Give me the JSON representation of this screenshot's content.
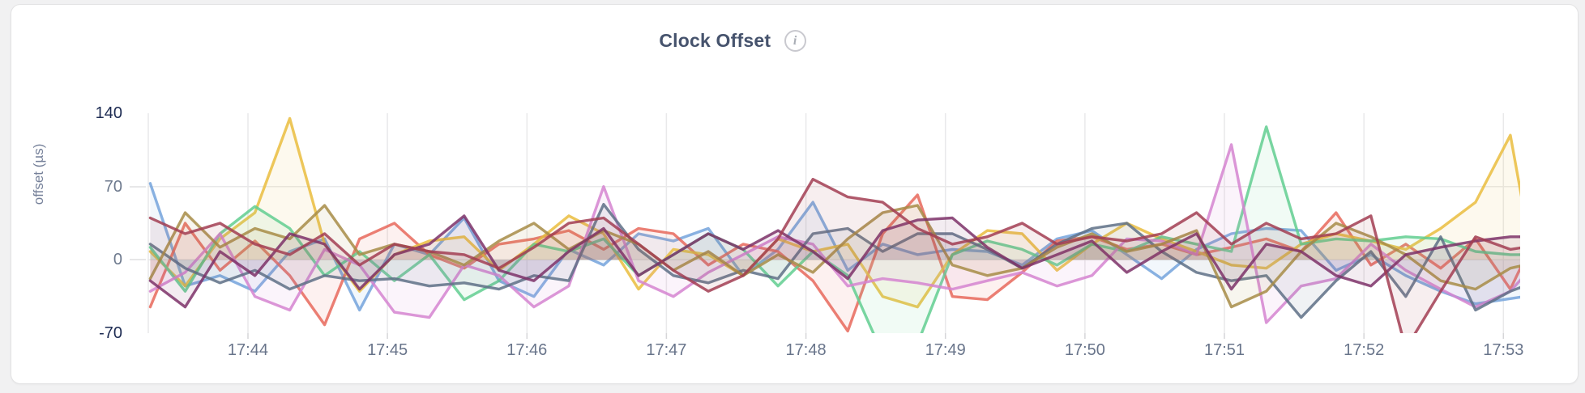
{
  "header": {
    "title": "Clock Offset",
    "info_icon_glyph": "i"
  },
  "chart_data": {
    "type": "line",
    "title": "Clock Offset",
    "xlabel": "",
    "ylabel": "offset (µs)",
    "ylim": [
      -70,
      140
    ],
    "grid": true,
    "legend": "none",
    "yticks": [
      {
        "label": "140",
        "value": 140,
        "emphasis": true
      },
      {
        "label": "70",
        "value": 70,
        "emphasis": false
      },
      {
        "label": "0",
        "value": 0,
        "emphasis": false
      },
      {
        "label": "-70",
        "value": -70,
        "emphasis": true
      }
    ],
    "grid_y_values": [
      70,
      0
    ],
    "xticks": [
      {
        "label": "17:44",
        "minute": 44
      },
      {
        "label": "17:45",
        "minute": 45
      },
      {
        "label": "17:46",
        "minute": 46
      },
      {
        "label": "17:47",
        "minute": 47
      },
      {
        "label": "17:48",
        "minute": 48
      },
      {
        "label": "17:49",
        "minute": 49
      },
      {
        "label": "17:50",
        "minute": 50
      },
      {
        "label": "17:51",
        "minute": 51
      },
      {
        "label": "17:52",
        "minute": 52
      },
      {
        "label": "17:53",
        "minute": 53
      }
    ],
    "x_domain_minutes": [
      43.28,
      53.12
    ],
    "x_minutes": [
      43.3,
      43.55,
      43.8,
      44.05,
      44.3,
      44.55,
      44.8,
      45.05,
      45.3,
      45.55,
      45.8,
      46.05,
      46.3,
      46.55,
      46.8,
      47.05,
      47.3,
      47.55,
      47.8,
      48.05,
      48.3,
      48.55,
      48.8,
      49.05,
      49.3,
      49.55,
      49.8,
      50.05,
      50.3,
      50.55,
      50.8,
      51.05,
      51.3,
      51.55,
      51.8,
      52.05,
      52.3,
      52.55,
      52.8,
      53.05,
      53.15
    ],
    "series": [
      {
        "name": "blue",
        "color": "#74A3DC",
        "values": [
          73,
          -25,
          -15,
          -30,
          8,
          20,
          -48,
          15,
          5,
          40,
          -20,
          -35,
          10,
          -5,
          25,
          18,
          30,
          -15,
          10,
          55,
          -10,
          15,
          5,
          10,
          8,
          -5,
          20,
          28,
          5,
          -18,
          10,
          25,
          30,
          28,
          -10,
          5,
          -15,
          -30,
          -42,
          -37,
          -35
        ]
      },
      {
        "name": "salmon",
        "color": "#E8685C",
        "values": [
          -45,
          35,
          -10,
          18,
          -15,
          -62,
          20,
          35,
          5,
          -8,
          15,
          20,
          28,
          10,
          30,
          25,
          -5,
          15,
          8,
          -20,
          -68,
          25,
          62,
          -35,
          -38,
          -12,
          18,
          22,
          10,
          15,
          5,
          12,
          20,
          8,
          45,
          -5,
          15,
          -8,
          20,
          -28,
          0
        ]
      },
      {
        "name": "yellow",
        "color": "#EABD3E",
        "values": [
          8,
          -25,
          20,
          45,
          135,
          15,
          -30,
          5,
          18,
          22,
          -10,
          15,
          42,
          25,
          -28,
          10,
          5,
          -15,
          20,
          8,
          15,
          -35,
          -45,
          5,
          28,
          25,
          -10,
          15,
          35,
          20,
          8,
          -5,
          -8,
          15,
          25,
          18,
          10,
          30,
          55,
          119,
          45
        ]
      },
      {
        "name": "green",
        "color": "#62CE90",
        "values": [
          12,
          -30,
          25,
          51,
          30,
          -15,
          8,
          -20,
          5,
          -38,
          -20,
          15,
          8,
          20,
          -15,
          5,
          25,
          10,
          -25,
          8,
          -15,
          -90,
          -80,
          5,
          18,
          10,
          -5,
          15,
          8,
          22,
          15,
          8,
          127,
          15,
          20,
          18,
          22,
          20,
          8,
          5,
          5
        ]
      },
      {
        "name": "orchid",
        "color": "#D584D0",
        "values": [
          -30,
          -12,
          25,
          -35,
          -48,
          10,
          -5,
          -50,
          -55,
          -5,
          -15,
          -45,
          -25,
          70,
          -20,
          -35,
          -12,
          5,
          22,
          15,
          -25,
          -18,
          -22,
          -28,
          -20,
          -12,
          -25,
          -15,
          20,
          18,
          5,
          110,
          -60,
          -25,
          -18,
          15,
          -10,
          -28,
          -45,
          -30,
          -15
        ]
      },
      {
        "name": "slate",
        "color": "#5E7086",
        "values": [
          15,
          -8,
          -22,
          -10,
          -28,
          -15,
          -20,
          -18,
          -25,
          -22,
          -28,
          -15,
          -20,
          53,
          10,
          -15,
          -22,
          -10,
          -18,
          25,
          30,
          8,
          25,
          25,
          10,
          -8,
          15,
          30,
          35,
          8,
          -12,
          -20,
          -15,
          -55,
          -20,
          8,
          -35,
          22,
          -48,
          -30,
          -25
        ]
      },
      {
        "name": "olive",
        "color": "#A78C46",
        "values": [
          -18,
          45,
          12,
          30,
          20,
          52,
          5,
          15,
          8,
          -5,
          18,
          35,
          10,
          28,
          15,
          -10,
          8,
          -15,
          5,
          -12,
          20,
          45,
          52,
          -5,
          -15,
          -8,
          12,
          25,
          8,
          15,
          28,
          -45,
          -30,
          8,
          35,
          22,
          5,
          -20,
          -28,
          -8,
          -5
        ]
      },
      {
        "name": "plum",
        "color": "#7D3168",
        "values": [
          -20,
          -45,
          8,
          -15,
          25,
          15,
          -28,
          5,
          15,
          42,
          -10,
          -20,
          8,
          30,
          -15,
          5,
          25,
          10,
          28,
          8,
          -18,
          28,
          38,
          40,
          12,
          -8,
          5,
          18,
          -12,
          8,
          25,
          -28,
          15,
          8,
          -15,
          -25,
          5,
          12,
          18,
          22,
          22
        ]
      },
      {
        "name": "maroon",
        "color": "#A23D52",
        "values": [
          40,
          25,
          35,
          15,
          5,
          25,
          -5,
          15,
          8,
          5,
          -8,
          12,
          35,
          40,
          15,
          -10,
          -30,
          -15,
          20,
          77,
          60,
          55,
          30,
          15,
          22,
          35,
          15,
          22,
          18,
          25,
          45,
          15,
          35,
          20,
          25,
          42,
          -85,
          -30,
          22,
          10,
          12
        ]
      }
    ],
    "style": {
      "gridline_color": "#e9e9ea",
      "tick_stub_color": "#d6d6d8",
      "line_width": 3.4,
      "line_opacity": 0.85,
      "fill_opacity": 0.09
    }
  }
}
